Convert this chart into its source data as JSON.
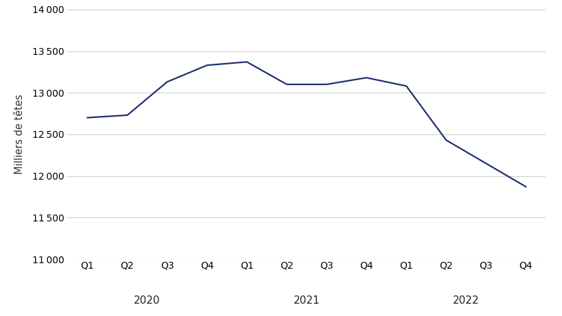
{
  "x_labels": [
    "Q1",
    "Q2",
    "Q3",
    "Q4",
    "Q1",
    "Q2",
    "Q3",
    "Q4",
    "Q1",
    "Q2",
    "Q3",
    "Q4"
  ],
  "year_labels": [
    "2020",
    "2021",
    "2022"
  ],
  "year_label_centers": [
    1.5,
    5.5,
    9.5
  ],
  "values": [
    12700,
    12730,
    13130,
    13330,
    13370,
    13100,
    13100,
    13180,
    13080,
    12430,
    12150,
    11870
  ],
  "line_color": "#1f3070",
  "line_width": 1.6,
  "ylabel": "Milliers de têtes",
  "ylim": [
    11000,
    14000
  ],
  "yticks": [
    11000,
    11500,
    12000,
    12500,
    13000,
    13500,
    14000
  ],
  "background_color": "#ffffff",
  "grid_color": "#d0d0d0",
  "tick_label_fontsize": 10,
  "year_label_fontsize": 11,
  "ylabel_fontsize": 10.5
}
